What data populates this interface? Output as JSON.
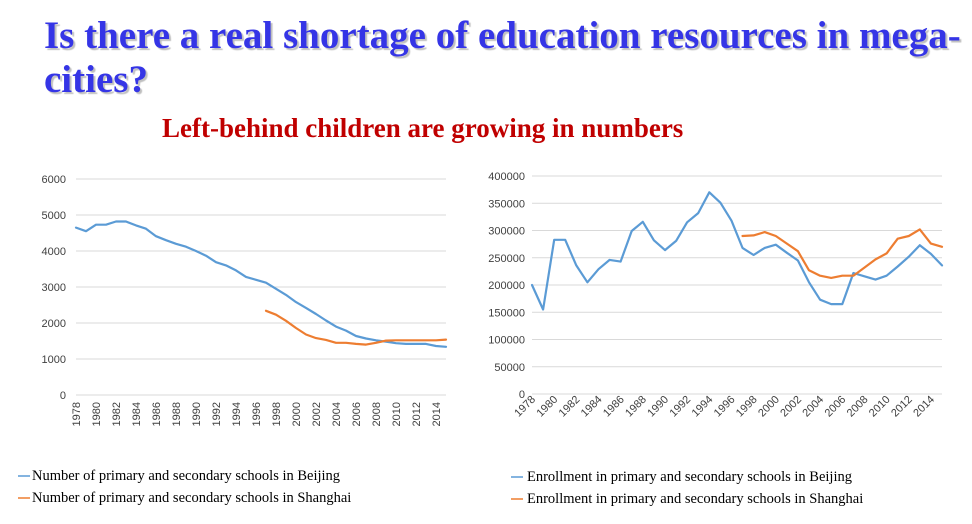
{
  "slide": {
    "title": "Is there a real shortage of education resources in mega-cities?",
    "subtitle": "Left-behind children are growing in numbers"
  },
  "colors": {
    "title": "#3535e6",
    "subtitle": "#c00000",
    "beijing": "#5b9bd5",
    "shanghai": "#ed7d31",
    "grid": "#d9d9d9"
  },
  "chart_data": [
    {
      "type": "line",
      "title": "",
      "xlabel": "",
      "ylabel": "",
      "ylim": [
        0,
        6000
      ],
      "yticks": [
        "0",
        "1000",
        "2000",
        "3000",
        "4000",
        "5000",
        "6000"
      ],
      "xticks": [
        "1978",
        "1980",
        "1982",
        "1984",
        "1986",
        "1988",
        "1990",
        "1992",
        "1994",
        "1996",
        "1998",
        "2000",
        "2002",
        "2004",
        "2006",
        "2008",
        "2010",
        "2012",
        "2014"
      ],
      "x": [
        1978,
        1979,
        1980,
        1981,
        1982,
        1983,
        1984,
        1985,
        1986,
        1987,
        1988,
        1989,
        1990,
        1991,
        1992,
        1993,
        1994,
        1995,
        1996,
        1997,
        1998,
        1999,
        2000,
        2001,
        2002,
        2003,
        2004,
        2005,
        2006,
        2007,
        2008,
        2009,
        2010,
        2011,
        2012,
        2013,
        2014,
        2015
      ],
      "grid": "horizontal",
      "legend": "bottom",
      "series": [
        {
          "name": "Number of primary and secondary schools in Beijing",
          "color": "#5b9bd5",
          "x": [
            1978,
            1979,
            1980,
            1981,
            1982,
            1983,
            1984,
            1985,
            1986,
            1987,
            1988,
            1989,
            1990,
            1991,
            1992,
            1993,
            1994,
            1995,
            1996,
            1997,
            1998,
            1999,
            2000,
            2001,
            2002,
            2003,
            2004,
            2005,
            2006,
            2007,
            2008,
            2009,
            2010,
            2011,
            2012,
            2013,
            2014,
            2015
          ],
          "values": [
            4650,
            4550,
            4730,
            4730,
            4820,
            4820,
            4710,
            4620,
            4410,
            4300,
            4200,
            4120,
            4000,
            3870,
            3690,
            3600,
            3460,
            3280,
            3200,
            3120,
            2950,
            2780,
            2580,
            2420,
            2250,
            2070,
            1900,
            1790,
            1640,
            1570,
            1520,
            1480,
            1440,
            1420,
            1420,
            1420,
            1360,
            1340
          ]
        },
        {
          "name": "Number of primary and secondary schools in Shanghai",
          "color": "#ed7d31",
          "x": [
            1997,
            1998,
            1999,
            2000,
            2001,
            2002,
            2003,
            2004,
            2005,
            2006,
            2007,
            2008,
            2009,
            2010,
            2011,
            2012,
            2013,
            2014,
            2015
          ],
          "values": [
            2340,
            2230,
            2060,
            1860,
            1680,
            1580,
            1530,
            1450,
            1450,
            1420,
            1400,
            1450,
            1510,
            1520,
            1520,
            1520,
            1520,
            1520,
            1540
          ]
        }
      ]
    },
    {
      "type": "line",
      "title": "",
      "xlabel": "",
      "ylabel": "",
      "ylim": [
        0,
        400000
      ],
      "yticks": [
        "0",
        "50000",
        "100000",
        "150000",
        "200000",
        "250000",
        "300000",
        "350000",
        "400000"
      ],
      "xticks": [
        "1978",
        "1980",
        "1982",
        "1984",
        "1986",
        "1988",
        "1990",
        "1992",
        "1994",
        "1996",
        "1998",
        "2000",
        "2002",
        "2004",
        "2006",
        "2008",
        "2010",
        "2012",
        "2014"
      ],
      "x": [
        1978,
        1979,
        1980,
        1981,
        1982,
        1983,
        1984,
        1985,
        1986,
        1987,
        1988,
        1989,
        1990,
        1991,
        1992,
        1993,
        1994,
        1995,
        1996,
        1997,
        1998,
        1999,
        2000,
        2001,
        2002,
        2003,
        2004,
        2005,
        2006,
        2007,
        2008,
        2009,
        2010,
        2011,
        2012,
        2013,
        2014,
        2015
      ],
      "grid": "horizontal",
      "legend": "bottom",
      "series": [
        {
          "name": "Enrollment in primary and secondary schools in Beijing",
          "color": "#5b9bd5",
          "x": [
            1978,
            1979,
            1980,
            1981,
            1982,
            1983,
            1984,
            1985,
            1986,
            1987,
            1988,
            1989,
            1990,
            1991,
            1992,
            1993,
            1994,
            1995,
            1996,
            1997,
            1998,
            1999,
            2000,
            2001,
            2002,
            2003,
            2004,
            2005,
            2006,
            2007,
            2008,
            2009,
            2010,
            2011,
            2012,
            2013,
            2014,
            2015
          ],
          "values": [
            200000,
            155000,
            283000,
            283000,
            236000,
            205000,
            229000,
            246000,
            243000,
            299000,
            316000,
            282000,
            264000,
            281000,
            315000,
            332000,
            370000,
            351000,
            318000,
            268000,
            255000,
            268000,
            274000,
            259000,
            245000,
            205000,
            173000,
            165000,
            165000,
            222000,
            216000,
            210000,
            217000,
            234000,
            252000,
            273000,
            257000,
            236000
          ]
        },
        {
          "name": "Enrollment in primary and secondary schools in Shanghai",
          "color": "#ed7d31",
          "x": [
            1997,
            1998,
            1999,
            2000,
            2001,
            2002,
            2003,
            2004,
            2005,
            2006,
            2007,
            2008,
            2009,
            2010,
            2011,
            2012,
            2013,
            2014,
            2015
          ],
          "values": [
            290000,
            291000,
            297000,
            290000,
            276000,
            262000,
            227000,
            217000,
            213000,
            217000,
            217000,
            232000,
            247000,
            258000,
            285000,
            290000,
            302000,
            276000,
            270000
          ]
        }
      ]
    }
  ]
}
